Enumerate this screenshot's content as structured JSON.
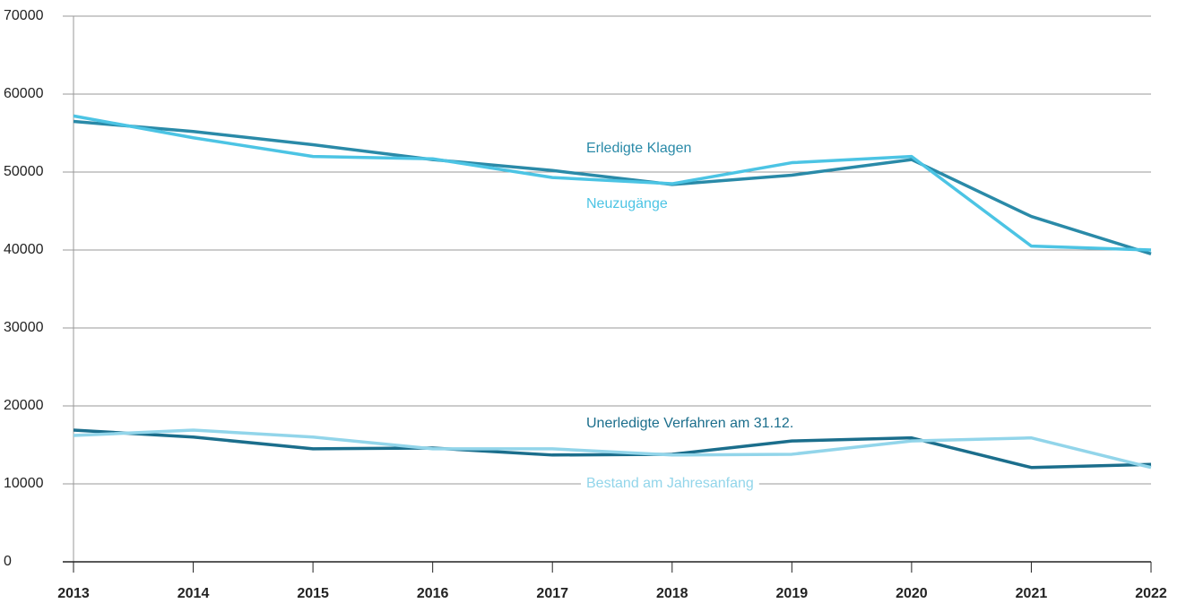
{
  "chart_data": {
    "type": "line",
    "categories": [
      "2013",
      "2014",
      "2015",
      "2016",
      "2017",
      "2018",
      "2019",
      "2020",
      "2021",
      "2022"
    ],
    "series": [
      {
        "name": "Erledigte Klagen",
        "color": "#2a8aa8",
        "values": [
          56500,
          55200,
          53500,
          51600,
          50200,
          48400,
          49600,
          51600,
          44300,
          39500
        ]
      },
      {
        "name": "Neuzugänge",
        "color": "#4cc4e4",
        "values": [
          57200,
          54400,
          52000,
          51700,
          49300,
          48500,
          51200,
          52000,
          40500,
          40000
        ]
      },
      {
        "name": "Unerledigte Verfahren am 31.12.",
        "color": "#1b6e8c",
        "values": [
          16900,
          16000,
          14500,
          14600,
          13700,
          13800,
          15500,
          15900,
          12100,
          12500
        ]
      },
      {
        "name": "Bestand am Jahresanfang",
        "color": "#92d5ea",
        "values": [
          16200,
          16900,
          16000,
          14500,
          14500,
          13700,
          13800,
          15500,
          15900,
          12100
        ]
      }
    ],
    "ylim": [
      0,
      70000
    ],
    "yticks": [
      0,
      10000,
      20000,
      30000,
      40000,
      50000,
      60000,
      70000
    ],
    "grid": true
  }
}
